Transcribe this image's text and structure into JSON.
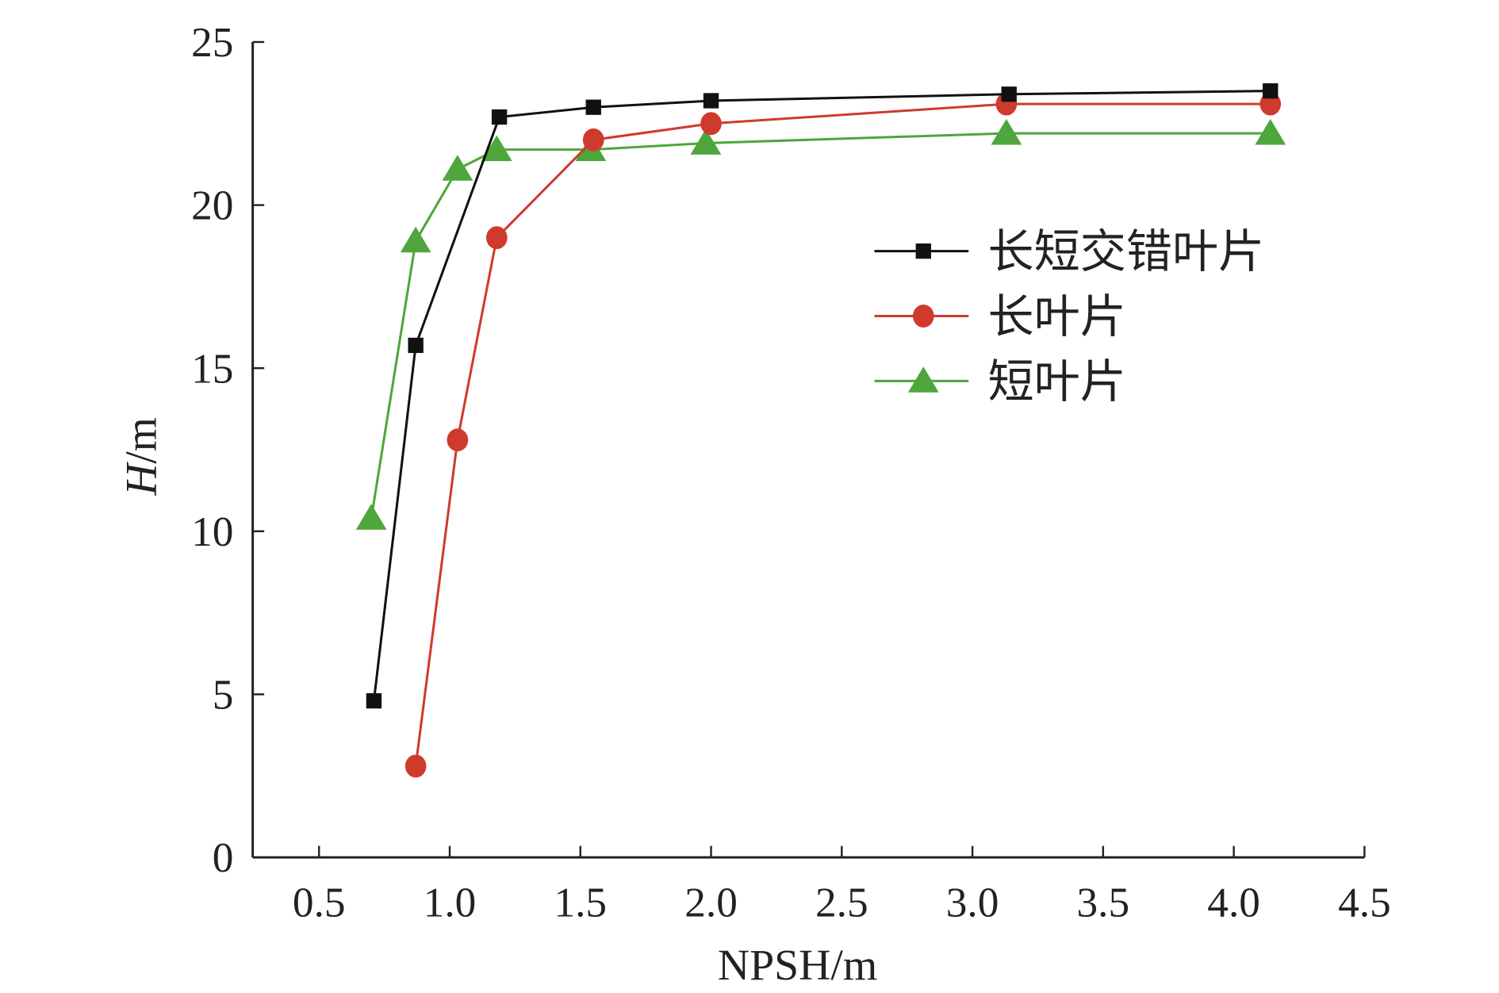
{
  "chart_data": {
    "type": "line",
    "title": "",
    "xlabel": "NPSH/m",
    "ylabel_italic": "H",
    "ylabel_unit": "/m",
    "xlim": [
      0.25,
      4.5
    ],
    "ylim": [
      0,
      25
    ],
    "xticks": [
      "0.5",
      "1.0",
      "1.5",
      "2.0",
      "2.5",
      "3.0",
      "3.5",
      "4.0",
      "4.5"
    ],
    "xtick_values": [
      0.5,
      1.0,
      1.5,
      2.0,
      2.5,
      3.0,
      3.5,
      4.0,
      4.5
    ],
    "yticks": [
      "0",
      "5",
      "10",
      "15",
      "20",
      "25"
    ],
    "ytick_values": [
      0,
      5,
      10,
      15,
      20,
      25
    ],
    "grid": false,
    "legend_position": "right-middle",
    "series": [
      {
        "name": "长短交错叶片",
        "color": "#111111",
        "marker": "square",
        "x": [
          0.71,
          0.87,
          1.19,
          1.55,
          2.0,
          3.14,
          4.14
        ],
        "y": [
          4.8,
          15.7,
          22.7,
          23.0,
          23.2,
          23.4,
          23.5
        ]
      },
      {
        "name": "长叶片",
        "color": "#d03a2c",
        "marker": "circle",
        "x": [
          0.87,
          1.03,
          1.18,
          1.55,
          2.0,
          3.13,
          4.14
        ],
        "y": [
          2.8,
          12.8,
          19.0,
          22.0,
          22.5,
          23.1,
          23.1
        ]
      },
      {
        "name": "短叶片",
        "color": "#4ea63c",
        "marker": "triangle",
        "x": [
          0.7,
          0.87,
          1.03,
          1.18,
          1.54,
          1.98,
          3.13,
          4.14
        ],
        "y": [
          10.4,
          18.9,
          21.1,
          21.7,
          21.7,
          21.9,
          22.2,
          22.2
        ]
      }
    ]
  }
}
